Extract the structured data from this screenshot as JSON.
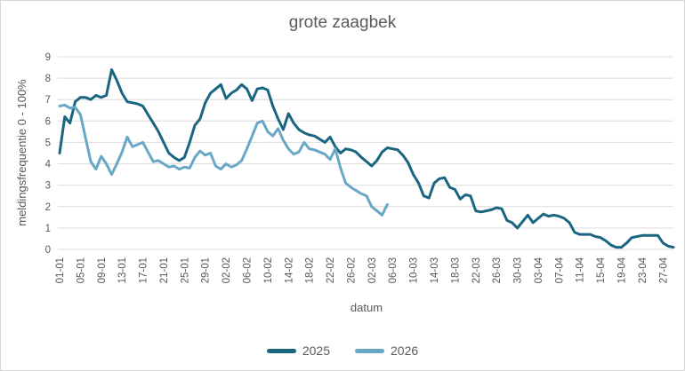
{
  "chart_data": {
    "type": "line",
    "title": "grote zaagbek",
    "xlabel": "datum",
    "ylabel": "meldingsfrequentie 0 - 100%",
    "ylim": [
      0,
      9
    ],
    "y_ticks": [
      0,
      1,
      2,
      3,
      4,
      5,
      6,
      7,
      8,
      9
    ],
    "grid": "horizontal",
    "legend_position": "bottom",
    "x_tick_interval_days": 4,
    "x_tick_labels": [
      "01-01",
      "05-01",
      "09-01",
      "13-01",
      "17-01",
      "21-01",
      "25-01",
      "29-01",
      "02-02",
      "06-02",
      "10-02",
      "14-02",
      "18-02",
      "22-02",
      "26-02",
      "02-03",
      "06-03",
      "10-03",
      "14-03",
      "18-03",
      "22-03",
      "26-03",
      "30-03",
      "03-04",
      "07-04",
      "11-04",
      "15-04",
      "19-04",
      "23-04",
      "27-04"
    ],
    "series": [
      {
        "name": "2025",
        "color": "#1A6680",
        "start_label": "01-01",
        "values": [
          4.5,
          6.2,
          5.9,
          6.9,
          7.1,
          7.1,
          7.0,
          7.2,
          7.1,
          7.2,
          8.4,
          7.9,
          7.3,
          6.9,
          6.85,
          6.8,
          6.7,
          6.3,
          5.9,
          5.5,
          5.0,
          4.5,
          4.3,
          4.15,
          4.3,
          5.0,
          5.8,
          6.1,
          6.85,
          7.3,
          7.5,
          7.7,
          7.05,
          7.3,
          7.45,
          7.7,
          7.5,
          6.95,
          7.5,
          7.55,
          7.45,
          6.7,
          6.1,
          5.6,
          6.35,
          5.9,
          5.6,
          5.45,
          5.35,
          5.3,
          5.15,
          5.0,
          5.25,
          4.8,
          4.5,
          4.7,
          4.65,
          4.55,
          4.3,
          4.1,
          3.9,
          4.15,
          4.55,
          4.75,
          4.7,
          4.65,
          4.4,
          4.05,
          3.5,
          3.1,
          2.5,
          2.4,
          3.1,
          3.3,
          3.35,
          2.9,
          2.8,
          2.35,
          2.55,
          2.5,
          1.8,
          1.75,
          1.8,
          1.85,
          1.95,
          1.9,
          1.35,
          1.25,
          1.0,
          1.3,
          1.6,
          1.25,
          1.45,
          1.65,
          1.55,
          1.6,
          1.55,
          1.45,
          1.25,
          0.8,
          0.7,
          0.7,
          0.7,
          0.6,
          0.55,
          0.4,
          0.2,
          0.1,
          0.1,
          0.3,
          0.55,
          0.6,
          0.65,
          0.65,
          0.65,
          0.65,
          0.3,
          0.15,
          0.1
        ]
      },
      {
        "name": "2026",
        "color": "#68A7C6",
        "start_label": "01-01",
        "values": [
          6.7,
          6.75,
          6.6,
          6.65,
          6.3,
          5.2,
          4.1,
          3.75,
          4.35,
          4.0,
          3.5,
          4.0,
          4.55,
          5.25,
          4.8,
          4.9,
          5.0,
          4.55,
          4.1,
          4.15,
          4.0,
          3.85,
          3.9,
          3.75,
          3.85,
          3.8,
          4.3,
          4.6,
          4.4,
          4.5,
          3.9,
          3.75,
          4.0,
          3.85,
          3.95,
          4.15,
          4.7,
          5.3,
          5.9,
          6.0,
          5.5,
          5.3,
          5.65,
          5.1,
          4.7,
          4.45,
          4.55,
          5.0,
          4.7,
          4.65,
          4.55,
          4.45,
          4.2,
          4.7,
          3.8,
          3.1,
          2.9,
          2.75,
          2.6,
          2.5,
          2.0,
          1.8,
          1.6,
          2.1
        ]
      }
    ],
    "colors": {
      "grid": "#DCDCDC",
      "text": "#595959",
      "border": "#D6D6D6",
      "background": "#FFFFFF"
    }
  }
}
